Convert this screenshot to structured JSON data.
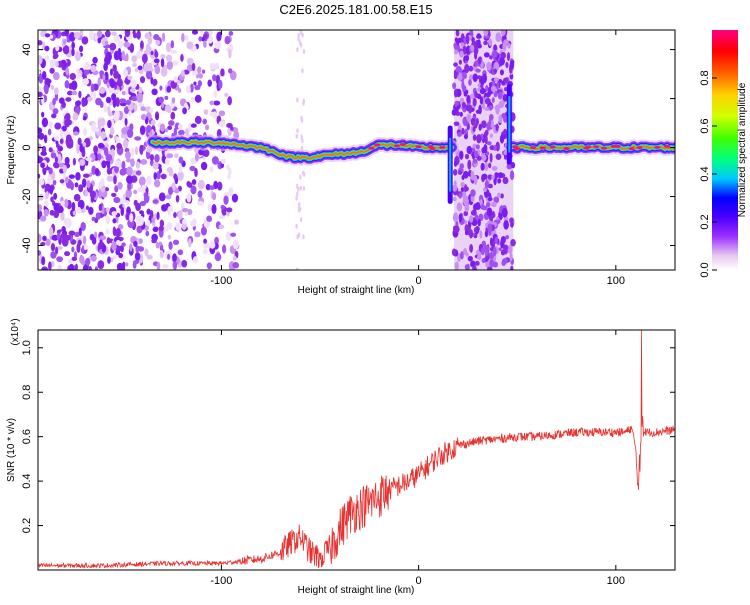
{
  "figure": {
    "title": "C2E6.2025.181.00.58.E15"
  },
  "chart_data": [
    {
      "type": "heatmap",
      "title": "C2E6.2025.181.00.58.E15",
      "xlabel": "Height of straight line (km)",
      "ylabel": "Frequency (Hz)",
      "xlim": [
        -193,
        130
      ],
      "ylim": [
        -50,
        48
      ],
      "xticks": [
        -100,
        0,
        100
      ],
      "yticks": [
        -40,
        -20,
        0,
        20,
        40
      ],
      "colorbar": {
        "label": "Normalized spectral amplitude",
        "range": [
          0.0,
          1.0
        ],
        "ticks": [
          "0.0",
          "0.2",
          "0.4",
          "0.6",
          "0.8"
        ],
        "colormap": [
          "#ffffff",
          "#e6c8f0",
          "#9b30ff",
          "#4a00ff",
          "#0000ff",
          "#00c8ff",
          "#00ff80",
          "#40ff00",
          "#d0ff00",
          "#ffd000",
          "#ff6000",
          "#ff0000",
          "#ff0080"
        ]
      },
      "ridge": [
        {
          "x": -135,
          "y": 2
        },
        {
          "x": -120,
          "y": 2
        },
        {
          "x": -100,
          "y": 2
        },
        {
          "x": -80,
          "y": 0
        },
        {
          "x": -65,
          "y": -4
        },
        {
          "x": -55,
          "y": -4
        },
        {
          "x": -45,
          "y": -3
        },
        {
          "x": -30,
          "y": -2
        },
        {
          "x": -20,
          "y": 1
        },
        {
          "x": -10,
          "y": 1
        },
        {
          "x": 0,
          "y": 0
        },
        {
          "x": 15,
          "y": 0
        },
        {
          "x": 50,
          "y": 0
        },
        {
          "x": 80,
          "y": 0
        },
        {
          "x": 100,
          "y": 0
        },
        {
          "x": 130,
          "y": 0
        }
      ],
      "spikes": [
        {
          "x": 16,
          "y_from": -22,
          "y_to": 8
        },
        {
          "x": 46,
          "y_from": -6,
          "y_to": 25
        }
      ]
    },
    {
      "type": "line",
      "xlabel": "Height of straight line (km)",
      "ylabel": "SNR (10 * v/v)",
      "y_scale_note": "(x10⁴)",
      "xlim": [
        -193,
        130
      ],
      "ylim": [
        0,
        1.08
      ],
      "xticks": [
        -100,
        0,
        100
      ],
      "yticks": [
        0.2,
        0.4,
        0.6,
        0.8,
        1.0
      ],
      "color": "#e8302e",
      "series": [
        {
          "x": [
            -193,
            -160,
            -130,
            -100,
            -80,
            -70,
            -65,
            -60,
            -55,
            -50,
            -45,
            -40,
            -35,
            -30,
            -25,
            -20,
            -15,
            -10,
            -5,
            0,
            5,
            10,
            20,
            30,
            40,
            50,
            60,
            70,
            80,
            90,
            100,
            105,
            108,
            110,
            111,
            112,
            113,
            114,
            116,
            120,
            130
          ],
          "values": [
            0.02,
            0.02,
            0.03,
            0.03,
            0.05,
            0.08,
            0.12,
            0.15,
            0.08,
            0.05,
            0.1,
            0.18,
            0.25,
            0.28,
            0.3,
            0.33,
            0.36,
            0.38,
            0.4,
            0.43,
            0.47,
            0.51,
            0.56,
            0.58,
            0.59,
            0.6,
            0.6,
            0.61,
            0.62,
            0.62,
            0.62,
            0.62,
            0.64,
            0.55,
            0.4,
            0.36,
            0.8,
            0.62,
            0.62,
            0.62,
            0.63
          ]
        }
      ],
      "noise_amplitude": [
        {
          "x_from": -193,
          "x_to": -90,
          "amp": 0.01
        },
        {
          "x_from": -90,
          "x_to": -70,
          "amp": 0.02
        },
        {
          "x_from": -70,
          "x_to": -45,
          "amp": 0.06
        },
        {
          "x_from": -45,
          "x_to": -15,
          "amp": 0.1
        },
        {
          "x_from": -15,
          "x_to": 20,
          "amp": 0.05
        },
        {
          "x_from": 20,
          "x_to": 130,
          "amp": 0.02
        }
      ]
    }
  ]
}
